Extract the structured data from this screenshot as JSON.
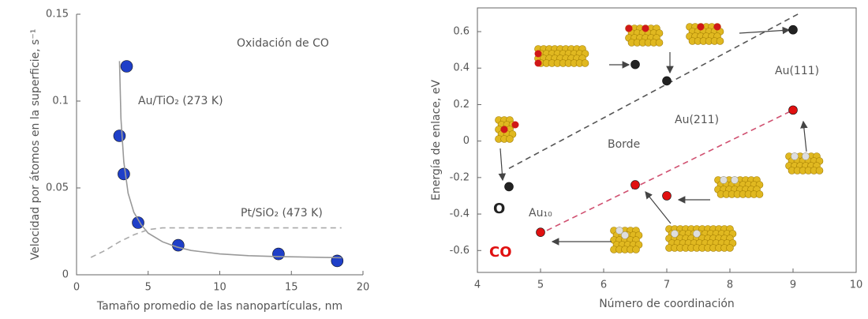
{
  "chart_data": [
    {
      "type": "scatter",
      "xlabel": "Tamaño promedio de las nanopartículas, nm",
      "ylabel": "Velocidad por átomos en la superficie, s⁻¹",
      "annotations": [
        "Oxidación de CO"
      ],
      "xlim": [
        0,
        20
      ],
      "ylim": [
        0,
        0.15
      ],
      "xticks": [
        0,
        5,
        10,
        15,
        20
      ],
      "yticks": [
        0,
        0.05,
        0.1,
        0.15
      ],
      "series": [
        {
          "name": "Au/TiO₂ (273 K)",
          "mode": "markers",
          "color": "#1f3fc8",
          "x": [
            3.5,
            3.0,
            3.3,
            4.3,
            7.1,
            14.1,
            18.2
          ],
          "values": [
            0.12,
            0.08,
            0.058,
            0.03,
            0.017,
            0.012,
            0.008
          ]
        },
        {
          "mode": "line",
          "color": "#999999",
          "dash": false,
          "x": [
            3.0,
            3.1,
            3.3,
            3.6,
            4,
            4.5,
            5,
            6,
            7,
            8,
            10,
            12,
            14,
            16,
            18.5
          ],
          "values": [
            0.123,
            0.09,
            0.065,
            0.047,
            0.036,
            0.029,
            0.024,
            0.019,
            0.016,
            0.014,
            0.012,
            0.011,
            0.0105,
            0.0102,
            0.0098
          ]
        },
        {
          "name": "Pt/SiO₂ (473 K)",
          "mode": "line",
          "color": "#aaaaaa",
          "dash": true,
          "x": [
            1,
            2,
            3,
            4,
            5,
            6,
            8,
            12,
            18.5
          ],
          "values": [
            0.01,
            0.014,
            0.019,
            0.023,
            0.026,
            0.027,
            0.027,
            0.027,
            0.027
          ]
        }
      ]
    },
    {
      "type": "scatter",
      "xlabel": "Número de coordinación",
      "ylabel": "Energía de enlace, eV",
      "annotations": [
        "Au₁₀",
        "Au(211)",
        "Au(111)",
        "Borde"
      ],
      "xlim": [
        4,
        10
      ],
      "ylim": [
        -0.72,
        0.73
      ],
      "xticks": [
        4,
        5,
        6,
        7,
        8,
        9,
        10
      ],
      "yticks": [
        -0.6,
        -0.4,
        -0.2,
        0,
        0.2,
        0.4,
        0.6
      ],
      "series": [
        {
          "mode": "line",
          "color": "#555555",
          "dash": true,
          "x": [
            4.5,
            9.1
          ],
          "values": [
            -0.15,
            0.7
          ]
        },
        {
          "mode": "line",
          "color": "#d05070",
          "dash": true,
          "x": [
            5.1,
            9
          ],
          "values": [
            -0.49,
            0.17
          ]
        },
        {
          "name": "O",
          "mode": "markers",
          "color": "#222222",
          "x": [
            4.5,
            6.5,
            7,
            9
          ],
          "values": [
            -0.25,
            0.42,
            0.33,
            0.61
          ]
        },
        {
          "name": "CO",
          "mode": "markers",
          "color": "#e01010",
          "x": [
            5,
            6.5,
            7,
            9
          ],
          "values": [
            -0.5,
            -0.24,
            -0.3,
            0.17
          ]
        }
      ]
    }
  ]
}
